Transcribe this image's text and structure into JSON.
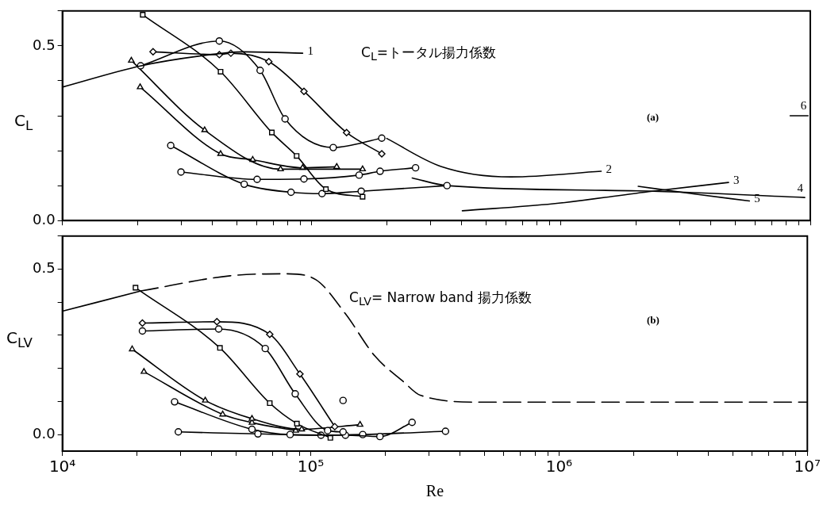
{
  "chart_data": [
    {
      "type": "line",
      "ylabel": "C$_{L}$",
      "log": "x",
      "grid": false,
      "tick_labels": "y",
      "xlim": [
        10000,
        10000000
      ],
      "ylim": [
        0,
        0.6
      ],
      "xticks": [
        {
          "value": 10000,
          "label": null
        },
        {
          "value": 20000,
          "label": null
        },
        {
          "value": 30000,
          "label": null
        },
        {
          "value": 40000,
          "label": null
        },
        {
          "value": 50000,
          "label": null
        },
        {
          "value": 60000,
          "label": null
        },
        {
          "value": 70000,
          "label": null
        },
        {
          "value": 80000,
          "label": null
        },
        {
          "value": 90000,
          "label": null
        },
        {
          "value": 100000,
          "label": null
        },
        {
          "value": 200000,
          "label": null
        },
        {
          "value": 300000,
          "label": null
        },
        {
          "value": 400000,
          "label": null
        },
        {
          "value": 500000,
          "label": null
        },
        {
          "value": 600000,
          "label": null
        },
        {
          "value": 700000,
          "label": null
        },
        {
          "value": 800000,
          "label": null
        },
        {
          "value": 900000,
          "label": null
        },
        {
          "value": 1000000,
          "label": null
        },
        {
          "value": 2000000,
          "label": null
        },
        {
          "value": 3000000,
          "label": null
        },
        {
          "value": 4000000,
          "label": null
        },
        {
          "value": 5000000,
          "label": null
        },
        {
          "value": 6000000,
          "label": null
        },
        {
          "value": 7000000,
          "label": null
        },
        {
          "value": 8000000,
          "label": null
        },
        {
          "value": 9000000,
          "label": null
        },
        {
          "value": 10000000,
          "label": null
        }
      ],
      "yticks": [
        {
          "value": 0,
          "label": "0.0"
        },
        {
          "value": 0.1,
          "label": null
        },
        {
          "value": 0.2,
          "label": null
        },
        {
          "value": 0.3,
          "label": null
        },
        {
          "value": 0.4,
          "label": null
        },
        {
          "value": 0.5,
          "label": "0.5"
        },
        {
          "value": 0.6,
          "label": null
        }
      ],
      "annotations": [
        "C$_{L}$=トータル揚力係数",
        "(a)"
      ],
      "series": [
        {
          "name": "1",
          "color": "#000000",
          "marker": "none",
          "x": [
            10000,
            20700,
            35600,
            53500,
            92000
          ],
          "values": [
            0.382,
            0.443,
            0.471,
            0.483,
            0.479
          ]
        },
        {
          "color": "#000000",
          "marker": "diamond",
          "x": [
            23100,
            42600,
            47400,
            67300,
            93100,
            138000,
            191000
          ],
          "values": [
            0.483,
            0.475,
            0.479,
            0.455,
            0.37,
            0.252,
            0.191
          ]
        },
        {
          "color": "#000000",
          "marker": "circle",
          "x": [
            20600,
            42600,
            62100,
            78200,
            122000,
            191000
          ],
          "values": [
            0.443,
            0.514,
            0.43,
            0.291,
            0.209,
            0.236
          ]
        },
        {
          "color": "#000000",
          "marker": "square",
          "x": [
            21000,
            43100,
            69200,
            87000,
            114000,
            160000
          ],
          "values": [
            0.589,
            0.426,
            0.252,
            0.185,
            0.09,
            0.068
          ]
        },
        {
          "color": "#000000",
          "marker": "triangle",
          "x": [
            18900,
            37200,
            75000,
            160000
          ],
          "values": [
            0.458,
            0.259,
            0.147,
            0.147
          ]
        },
        {
          "color": "#000000",
          "marker": "triangle",
          "x": [
            20500,
            43100,
            58000,
            92000,
            126000
          ],
          "values": [
            0.382,
            0.191,
            0.174,
            0.151,
            0.154
          ]
        },
        {
          "color": "#000000",
          "marker": "circle",
          "x": [
            27200,
            53600,
            82600,
            110000,
            158000,
            349000
          ],
          "values": [
            0.215,
            0.104,
            0.081,
            0.077,
            0.084,
            0.1
          ]
        },
        {
          "color": "#000000",
          "marker": "circle",
          "x": [
            29900,
            60400,
            93100,
            155000,
            188000,
            261000
          ],
          "values": [
            0.139,
            0.118,
            0.119,
            0.13,
            0.141,
            0.151
          ]
        },
        {
          "name": "2",
          "color": "#000000",
          "marker": "none",
          "x": [
            200000,
            330000,
            630000,
            1450000
          ],
          "values": [
            0.235,
            0.155,
            0.125,
            0.141
          ]
        },
        {
          "name": "3",
          "color": "#000000",
          "marker": "none",
          "x": [
            402000,
            930000,
            2320000,
            4700000
          ],
          "values": [
            0.028,
            0.048,
            0.084,
            0.109
          ]
        },
        {
          "name": "4",
          "color": "#000000",
          "marker": "none",
          "x": [
            253000,
            349000,
            2040000,
            9500000
          ],
          "values": [
            0.122,
            0.1,
            0.085,
            0.066
          ]
        },
        {
          "name": "5",
          "color": "#000000",
          "marker": "none",
          "x": [
            2040000,
            3440000,
            5700000
          ],
          "values": [
            0.098,
            0.076,
            0.056
          ]
        },
        {
          "name": "6",
          "color": "#000000",
          "marker": "none",
          "x": [
            8300000,
            9800000
          ],
          "values": [
            0.3,
            0.3
          ]
        }
      ]
    },
    {
      "type": "line",
      "xlabel": "Re",
      "ylabel": "C$_{LV}$",
      "log": "x",
      "grid": false,
      "xlim": [
        10000,
        10000000
      ],
      "ylim": [
        -0.05,
        0.6
      ],
      "xticks": [
        {
          "value": 10000,
          "label": "10⁴"
        },
        {
          "value": 20000,
          "label": null
        },
        {
          "value": 30000,
          "label": null
        },
        {
          "value": 40000,
          "label": null
        },
        {
          "value": 50000,
          "label": null
        },
        {
          "value": 60000,
          "label": null
        },
        {
          "value": 70000,
          "label": null
        },
        {
          "value": 80000,
          "label": null
        },
        {
          "value": 90000,
          "label": null
        },
        {
          "value": 100000,
          "label": "10⁵"
        },
        {
          "value": 200000,
          "label": null
        },
        {
          "value": 300000,
          "label": null
        },
        {
          "value": 400000,
          "label": null
        },
        {
          "value": 500000,
          "label": null
        },
        {
          "value": 600000,
          "label": null
        },
        {
          "value": 700000,
          "label": null
        },
        {
          "value": 800000,
          "label": null
        },
        {
          "value": 900000,
          "label": null
        },
        {
          "value": 1000000,
          "label": "10⁶"
        },
        {
          "value": 2000000,
          "label": null
        },
        {
          "value": 3000000,
          "label": null
        },
        {
          "value": 4000000,
          "label": null
        },
        {
          "value": 5000000,
          "label": null
        },
        {
          "value": 6000000,
          "label": null
        },
        {
          "value": 7000000,
          "label": null
        },
        {
          "value": 8000000,
          "label": null
        },
        {
          "value": 9000000,
          "label": null
        },
        {
          "value": 10000000,
          "label": "10⁷"
        }
      ],
      "yticks": [
        {
          "value": 0,
          "label": "0.0"
        },
        {
          "value": 0.1,
          "label": null
        },
        {
          "value": 0.2,
          "label": null
        },
        {
          "value": 0.3,
          "label": null
        },
        {
          "value": 0.4,
          "label": null
        },
        {
          "value": 0.5,
          "label": "0.5"
        },
        {
          "value": 0.6,
          "label": null
        }
      ],
      "annotations": [
        "C$_{LV}$= Narrow band 揚力係数",
        "(b)"
      ],
      "series": [
        {
          "color": "#000000",
          "marker": "none",
          "line_style": "solid",
          "x": [
            10000,
            20700
          ],
          "values": [
            0.373,
            0.434
          ]
        },
        {
          "color": "#000000",
          "marker": "none",
          "line_style": "dashed",
          "x": [
            20700,
            47400,
            80600,
            105000,
            138000,
            181000,
            237000,
            276000,
            489000,
            10000000
          ],
          "values": [
            0.434,
            0.48,
            0.486,
            0.468,
            0.365,
            0.238,
            0.159,
            0.119,
            0.098,
            0.098
          ]
        },
        {
          "color": "#000000",
          "marker": "square",
          "x": [
            19700,
            43100,
            68400,
            88000,
            120000
          ],
          "values": [
            0.444,
            0.262,
            0.095,
            0.033,
            -0.01
          ]
        },
        {
          "color": "#000000",
          "marker": "diamond",
          "x": [
            21000,
            41900,
            68400,
            90500,
            125000
          ],
          "values": [
            0.337,
            0.341,
            0.303,
            0.183,
            0.024
          ]
        },
        {
          "color": "#000000",
          "marker": "circle",
          "x": [
            21000,
            42600,
            65600,
            86600,
            117000,
            135000
          ],
          "values": [
            0.313,
            0.319,
            0.26,
            0.123,
            0.012,
            0.008
          ]
        },
        {
          "type": "scatter",
          "color": "#000000",
          "marker": "circle",
          "x": [
            135000
          ],
          "values": [
            0.103
          ]
        },
        {
          "color": "#000000",
          "marker": "triangle",
          "x": [
            19100,
            37600,
            58000,
            92000,
            158000
          ],
          "values": [
            0.258,
            0.103,
            0.048,
            0.016,
            0.03
          ]
        },
        {
          "color": "#000000",
          "marker": "triangle",
          "x": [
            21300,
            44200,
            58000,
            87000
          ],
          "values": [
            0.19,
            0.061,
            0.036,
            0.012
          ]
        },
        {
          "color": "#000000",
          "marker": "circle",
          "x": [
            28300,
            58000,
            82600,
            138000,
            190000,
            256000
          ],
          "values": [
            0.099,
            0.016,
            0,
            -0.002,
            -0.006,
            0.037
          ]
        },
        {
          "color": "#000000",
          "marker": "circle",
          "x": [
            29300,
            61300,
            110000,
            162000,
            349000
          ],
          "values": [
            0.008,
            0.002,
            -0.002,
            0,
            0.01
          ]
        }
      ]
    }
  ]
}
